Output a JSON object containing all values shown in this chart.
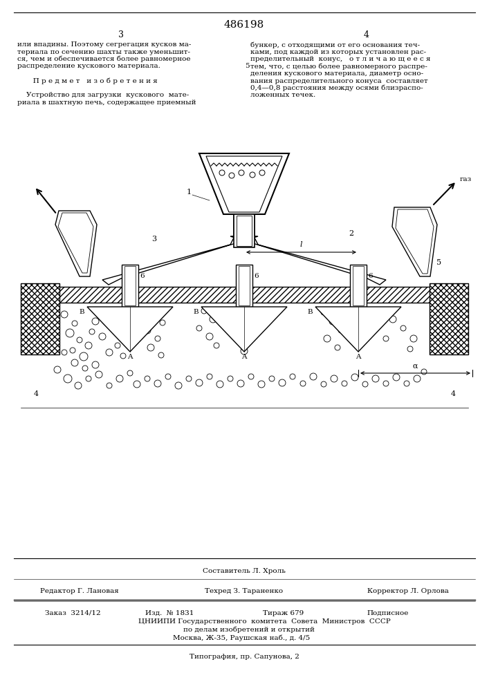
{
  "patent_number": "486198",
  "page_left": "3",
  "page_right": "4",
  "background_color": "#ffffff",
  "text_color": "#000000",
  "line_color": "#000000",
  "left_lines": [
    "или впадины. Поэтому сегрегация кусков ма-",
    "териала по сечению шахты также уменьшит-",
    "ся, чем и обеспечивается более равномерное",
    "распределение кускового материала.",
    "",
    "       П р е д м е т   и з о б р е т е н и я",
    "",
    "    Устройство для загрузки  кускового  мате-",
    "риала в шахтную печь, содержащее приемный"
  ],
  "right_lines": [
    "бункер, с отходящими от его основания теч-",
    "ками, под каждой из которых установлен рас-",
    "пределительный  конус,   о т л и ч а ю щ е е с я",
    "тем, что, с целью более равномерного распре-",
    "деления кускового материала, диаметр осно-",
    "вания распределительного конуса  составляет",
    "0,4—0,8 расстояния между осями близраспо-",
    "ложенных течек."
  ],
  "line5_idx": 3,
  "composer": "Составитель Л. Хроль",
  "editor": "Редактор Г. Лановая",
  "techred": "Техред З. Тараненко",
  "corrector": "Корректор Л. Орлова",
  "order_line": "Заказ  3214/12",
  "izd_line": "Изд.  № 1831",
  "tirazh_line": "Тираж 679",
  "podp_line": "Подписное",
  "org1": "ЦНИИПИ Государственного  комитета  Совета  Министров  СССР",
  "org2": "по делам изобретений и открытий",
  "org3": "Москва, Ж-35, Раушская наб., д. 4/5",
  "typograph": "Типография, пр. Сапунова, 2",
  "gas_label": "газ",
  "label1": "1",
  "label2": "2",
  "label3": "3",
  "label4": "4",
  "label5": "5",
  "label6": "6",
  "labelA": "A",
  "labelB": "B",
  "labelL": "l",
  "labelAlpha": "α"
}
